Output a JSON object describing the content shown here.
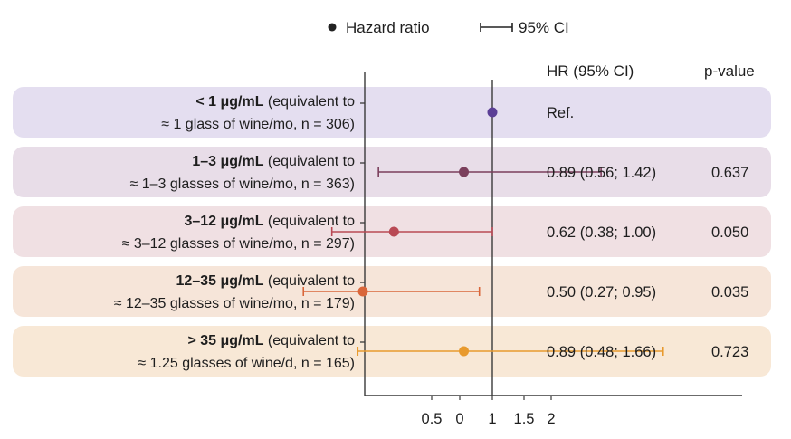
{
  "legend": {
    "point_label": "Hazard ratio",
    "ci_label": "95% CI"
  },
  "headers": {
    "hr": "HR (95% CI)",
    "p": "p-value"
  },
  "colors": {
    "axis": "#3a3a3a",
    "marker_legend": "#222222"
  },
  "chart_data": {
    "type": "forest",
    "title": "",
    "xlabel": "",
    "reference_line": 1,
    "x_ticks": [
      "0.5",
      "0",
      "1",
      "1.5",
      "2"
    ],
    "rows": [
      {
        "label_bold": "< 1 μg/mL",
        "label_rest": " (equivalent to",
        "label_line2": "≈ 1 glass of wine/mo, n = 306)",
        "hr": 1.0,
        "lo": null,
        "hi": null,
        "hr_text": "Ref.",
        "p_text": "",
        "band_color": "#e4def0",
        "marker_color": "#5b3f96"
      },
      {
        "label_bold": "1–3 μg/mL",
        "label_rest": " (equivalent to",
        "label_line2": "≈ 1–3 glasses of wine/mo, n = 363)",
        "hr": 0.89,
        "lo": 0.56,
        "hi": 1.42,
        "hr_text": "0.89 (0.56; 1.42)",
        "p_text": "0.637",
        "band_color": "#e8dde8",
        "marker_color": "#7b3f5c"
      },
      {
        "label_bold": "3–12 μg/mL",
        "label_rest": " (equivalent to",
        "label_line2": "≈ 3–12 glasses of wine/mo, n = 297)",
        "hr": 0.62,
        "lo": 0.38,
        "hi": 1.0,
        "hr_text": "0.62 (0.38; 1.00)",
        "p_text": "0.050",
        "band_color": "#f0e0e3",
        "marker_color": "#b94a55"
      },
      {
        "label_bold": "12–35 μg/mL",
        "label_rest": " (equivalent to",
        "label_line2": "≈ 12–35 glasses of wine/mo, n = 179)",
        "hr": 0.5,
        "lo": 0.27,
        "hi": 0.95,
        "hr_text": "0.50 (0.27; 0.95)",
        "p_text": "0.035",
        "band_color": "#f6e5d9",
        "marker_color": "#d9663a"
      },
      {
        "label_bold": "> 35 μg/mL",
        "label_rest": " (equivalent to",
        "label_line2": "≈ 1.25 glasses of wine/d, n = 165)",
        "hr": 0.89,
        "lo": 0.48,
        "hi": 1.66,
        "hr_text": "0.89 (0.48; 1.66)",
        "p_text": "0.723",
        "band_color": "#f8e8d6",
        "marker_color": "#e89a2e"
      }
    ]
  }
}
